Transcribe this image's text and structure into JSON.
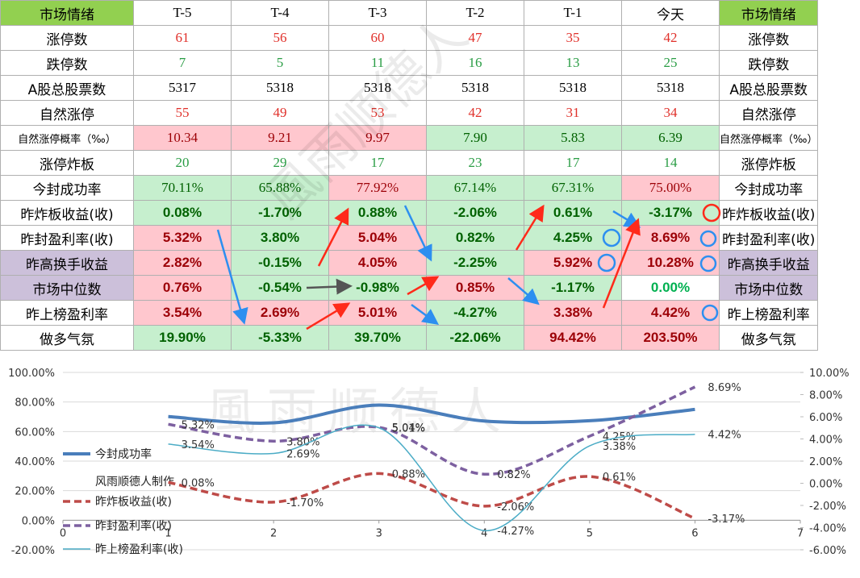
{
  "table": {
    "header": [
      "市场情绪",
      "T-5",
      "T-4",
      "T-3",
      "T-2",
      "T-1",
      "今天",
      "市场情绪"
    ],
    "rows": [
      [
        "涨停数",
        "61",
        "56",
        "60",
        "47",
        "35",
        "42",
        "涨停数"
      ],
      [
        "跌停数",
        "7",
        "5",
        "11",
        "16",
        "13",
        "25",
        "跌停数"
      ],
      [
        "A股总股票数",
        "5317",
        "5318",
        "5318",
        "5318",
        "5318",
        "5318",
        "A股总股票数"
      ],
      [
        "自然涨停",
        "55",
        "49",
        "53",
        "42",
        "31",
        "34",
        "自然涨停"
      ],
      [
        "自然涨停概率（‰）",
        "10.34",
        "9.21",
        "9.97",
        "7.90",
        "5.83",
        "6.39",
        "自然涨停概率（‰）"
      ],
      [
        "涨停炸板",
        "20",
        "29",
        "17",
        "23",
        "17",
        "14",
        "涨停炸板"
      ],
      [
        "今封成功率",
        "70.11%",
        "65.88%",
        "77.92%",
        "67.14%",
        "67.31%",
        "75.00%",
        "今封成功率"
      ],
      [
        "昨炸板收益(收)",
        "0.08%",
        "-1.70%",
        "0.88%",
        "-2.06%",
        "0.61%",
        "-3.17%",
        "昨炸板收益(收)"
      ],
      [
        "昨封盈利率(收)",
        "5.32%",
        "3.80%",
        "5.04%",
        "0.82%",
        "4.25%",
        "8.69%",
        "昨封盈利率(收)"
      ],
      [
        "昨高换手收益",
        "2.82%",
        "-0.15%",
        "4.05%",
        "-2.25%",
        "5.92%",
        "10.28%",
        "昨高换手收益"
      ],
      [
        "市场中位数",
        "0.76%",
        "-0.54%",
        "-0.98%",
        "0.85%",
        "-1.17%",
        "0.00%",
        "市场中位数"
      ],
      [
        "昨上榜盈利率",
        "3.54%",
        "2.69%",
        "5.01%",
        "-4.27%",
        "3.38%",
        "4.42%",
        "昨上榜盈利率"
      ],
      [
        "做多气氛",
        "19.90%",
        "-5.33%",
        "39.70%",
        "-22.06%",
        "94.42%",
        "203.50%",
        "做多气氛"
      ]
    ]
  },
  "watermark": "風雨顺德人",
  "chart_data": {
    "type": "line",
    "legend_note": "风雨顺德人制作",
    "x": [
      1,
      2,
      3,
      4,
      5,
      6
    ],
    "xlim": [
      0,
      7
    ],
    "xticks": [
      0,
      1,
      2,
      3,
      4,
      5,
      6,
      7
    ],
    "ylim": [
      -20,
      100
    ],
    "yticks": [
      {
        "value": -20,
        "label": "-20.00%"
      },
      {
        "value": 0,
        "label": "0.00%"
      },
      {
        "value": 20,
        "label": "20.00%"
      },
      {
        "value": 40,
        "label": "40.00%"
      },
      {
        "value": 60,
        "label": "60.00%"
      },
      {
        "value": 80,
        "label": "80.00%"
      },
      {
        "value": 100,
        "label": "100.00%"
      }
    ],
    "y2lim": [
      -6,
      10
    ],
    "y2ticks": [
      {
        "value": -6,
        "label": "-6.00%"
      },
      {
        "value": -4,
        "label": "-4.00%"
      },
      {
        "value": -2,
        "label": "-2.00%"
      },
      {
        "value": 0,
        "label": "0.00%"
      },
      {
        "value": 2,
        "label": "2.00%"
      },
      {
        "value": 4,
        "label": "4.00%"
      },
      {
        "value": 6,
        "label": "6.00%"
      },
      {
        "value": 8,
        "label": "8.00%"
      },
      {
        "value": 10,
        "label": "10.00%"
      }
    ],
    "grid": true,
    "series": [
      {
        "name": "今封成功率",
        "color": "#4a7ebb",
        "values": [
          70.11,
          65.88,
          77.92,
          67.14,
          67.31,
          75.0
        ]
      },
      {
        "name": "昨炸板收益(收)",
        "color": "#be4b48",
        "axis": "y2",
        "values": [
          0.08,
          -1.7,
          0.88,
          -2.06,
          0.61,
          -3.17
        ],
        "value_labels": [
          "0.08%",
          "-1.70%",
          "0.88%",
          "-2.06%",
          "0.61%",
          "-3.17%"
        ]
      },
      {
        "name": "昨封盈利率(收)",
        "color": "#7d60a0",
        "axis": "y2",
        "values": [
          5.32,
          3.8,
          5.04,
          0.82,
          4.25,
          8.69
        ],
        "value_labels": [
          "5.32%",
          "3.80%",
          "5.04%",
          "0.82%",
          "4.25%",
          "8.69%"
        ]
      },
      {
        "name": "昨上榜盈利率(收)",
        "color": "#4bacc6",
        "axis": "y2",
        "values": [
          3.54,
          2.69,
          5.01,
          -4.27,
          3.38,
          4.42
        ],
        "value_labels": [
          "3.54%",
          "2.69%",
          "5.01%",
          "-4.27%",
          "3.38%",
          "4.42%"
        ]
      }
    ]
  }
}
